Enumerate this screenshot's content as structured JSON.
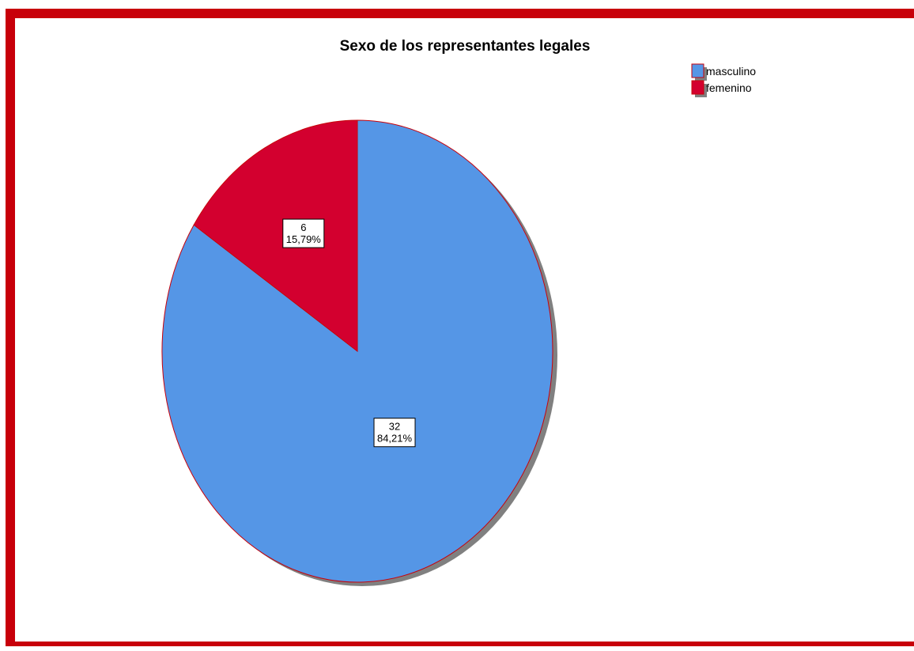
{
  "chart_data": {
    "type": "pie",
    "title": "Sexo de los representantes legales",
    "legend_position": "top-right",
    "slices": [
      {
        "name": "masculino",
        "value": 32,
        "percent": "84,21%",
        "color": "#5596e6"
      },
      {
        "name": "femenino",
        "value": 6,
        "percent": "15,79%",
        "color": "#d3002f"
      }
    ],
    "outline_color": "#c8000a",
    "shadow_color": "#808080"
  }
}
